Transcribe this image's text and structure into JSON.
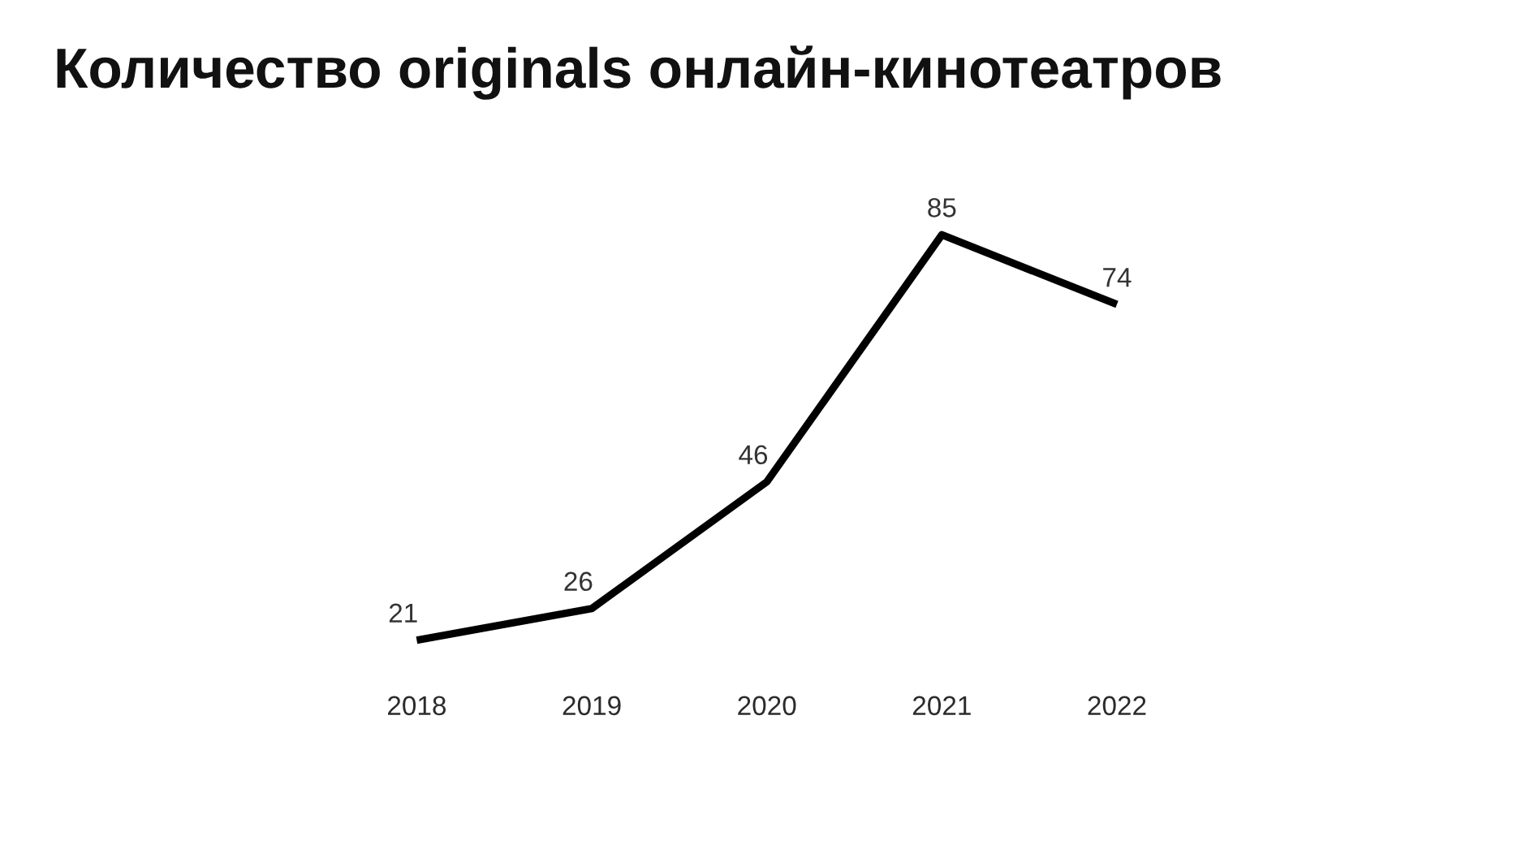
{
  "chart_data": {
    "type": "line",
    "title": "Количество originals онлайн-кинотеатров",
    "categories": [
      "2018",
      "2019",
      "2020",
      "2021",
      "2022"
    ],
    "values": [
      21,
      26,
      46,
      85,
      74
    ],
    "color": "#000000",
    "data_labels": true,
    "tick_labels": "x"
  }
}
